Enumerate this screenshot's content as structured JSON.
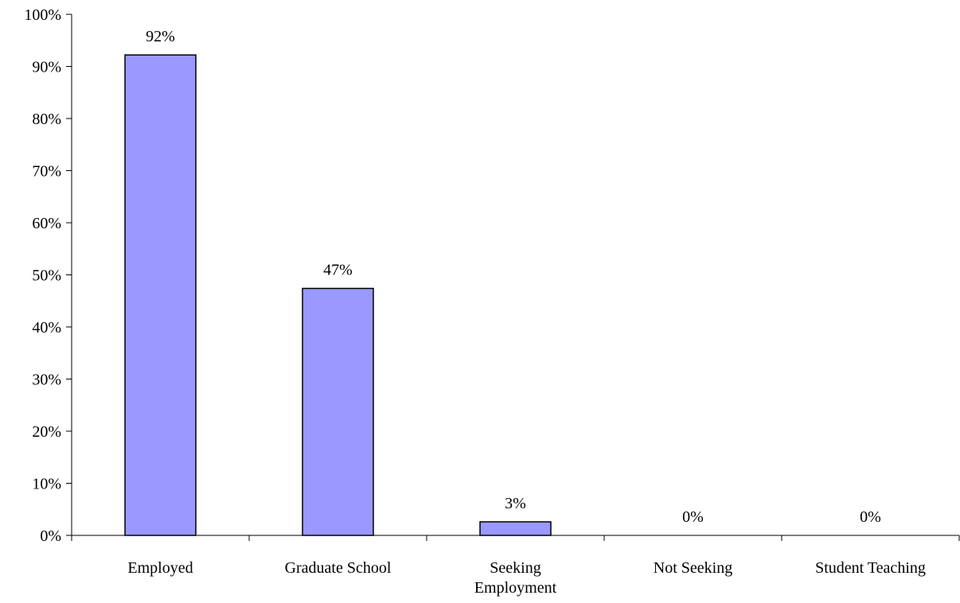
{
  "chart_data": {
    "type": "bar",
    "categories": [
      [
        "Employed"
      ],
      [
        "Graduate School"
      ],
      [
        "Seeking",
        "Employment"
      ],
      [
        "Not Seeking"
      ],
      [
        "Student Teaching"
      ]
    ],
    "values": [
      92.2,
      47.4,
      2.6,
      0,
      0
    ],
    "data_labels": [
      "92%",
      "47%",
      "3%",
      "0%",
      "0%"
    ],
    "y_ticks": [
      "0%",
      "10%",
      "20%",
      "30%",
      "40%",
      "50%",
      "60%",
      "70%",
      "80%",
      "90%",
      "100%"
    ],
    "ylim": [
      0,
      100
    ],
    "grid": false,
    "legend": "none",
    "colors": {
      "bar_fill": "#9999ff",
      "bar_stroke": "#000000",
      "axis": "#000000"
    }
  }
}
